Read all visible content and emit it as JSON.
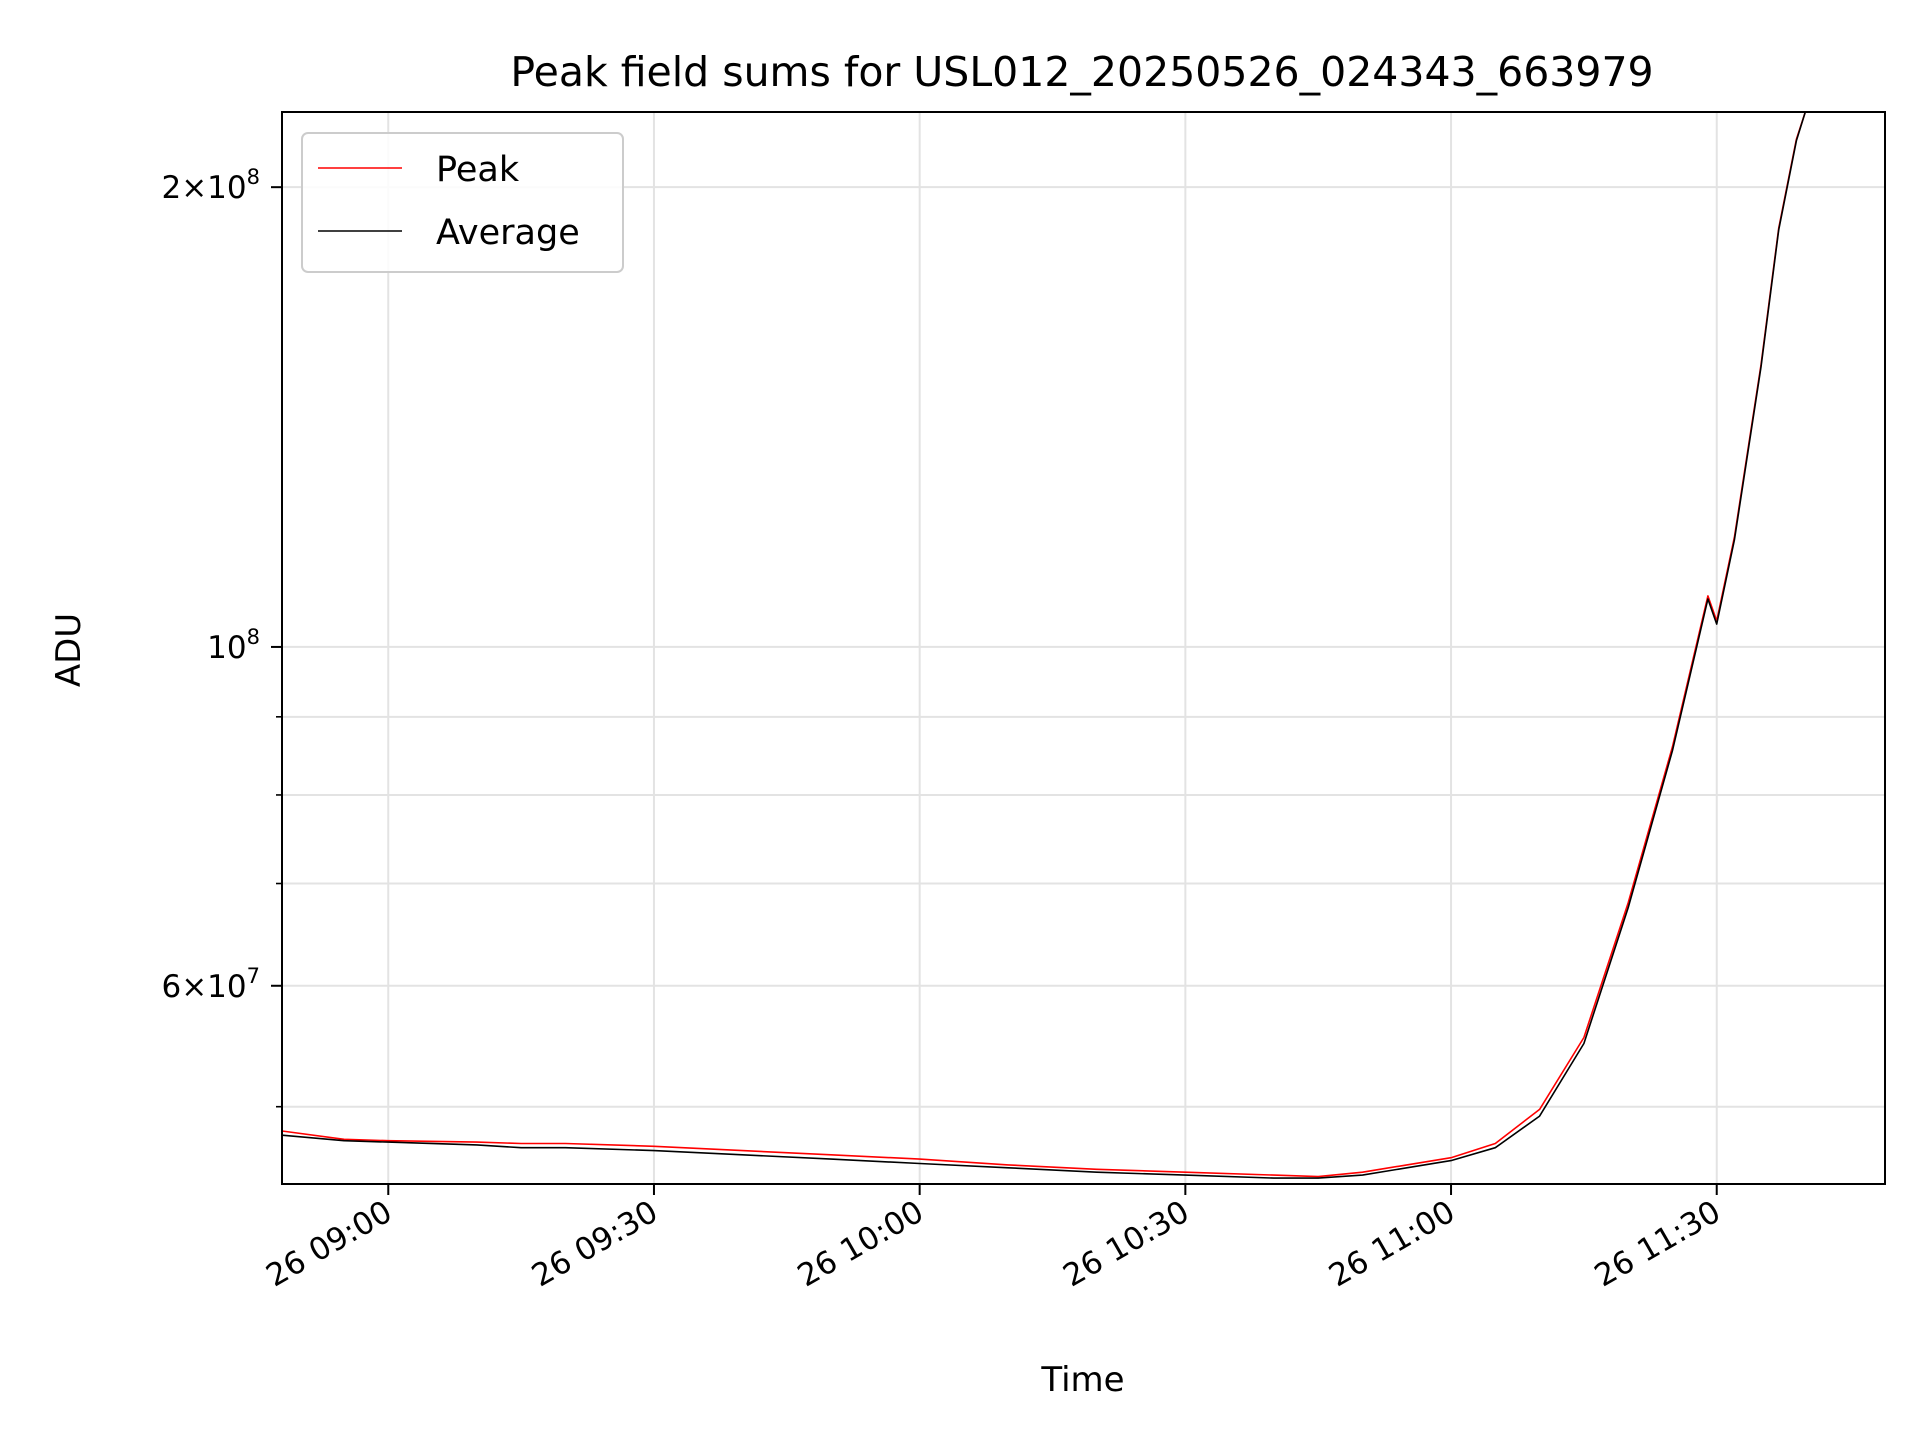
{
  "chart_data": {
    "type": "line",
    "title": "Peak field sums for USL012_20250526_024343_663979",
    "xlabel": "Time",
    "ylabel": "ADU",
    "yscale": "log",
    "grid": true,
    "legend_position": "top-left",
    "xlim": [
      "2025-05-26 08:48",
      "2025-05-26 11:49"
    ],
    "ylim": [
      44500000,
      224000000
    ],
    "x_ticks": [
      {
        "value": "2025-05-26 09:00",
        "label": "26 09:00"
      },
      {
        "value": "2025-05-26 09:30",
        "label": "26 09:30"
      },
      {
        "value": "2025-05-26 10:00",
        "label": "26 10:00"
      },
      {
        "value": "2025-05-26 10:30",
        "label": "26 10:30"
      },
      {
        "value": "2025-05-26 11:00",
        "label": "26 11:00"
      },
      {
        "value": "2025-05-26 11:30",
        "label": "26 11:30"
      }
    ],
    "y_ticks": [
      {
        "value": 200000000,
        "mantissa": "2",
        "exponent": "8"
      },
      {
        "value": 100000000,
        "mantissa": "",
        "exponent": "8"
      },
      {
        "value": 60000000,
        "mantissa": "6",
        "exponent": "7"
      }
    ],
    "y_minor_ticks": [
      50000000,
      70000000,
      80000000,
      90000000
    ],
    "series": [
      {
        "name": "Peak",
        "color": "#ff0000",
        "points": [
          [
            "2025-05-26 08:48",
            48200000
          ],
          [
            "2025-05-26 08:55",
            47600000
          ],
          [
            "2025-05-26 09:00",
            47500000
          ],
          [
            "2025-05-26 09:10",
            47400000
          ],
          [
            "2025-05-26 09:15",
            47300000
          ],
          [
            "2025-05-26 09:20",
            47300000
          ],
          [
            "2025-05-26 09:30",
            47100000
          ],
          [
            "2025-05-26 09:40",
            46800000
          ],
          [
            "2025-05-26 09:50",
            46500000
          ],
          [
            "2025-05-26 10:00",
            46200000
          ],
          [
            "2025-05-26 10:10",
            45800000
          ],
          [
            "2025-05-26 10:20",
            45500000
          ],
          [
            "2025-05-26 10:30",
            45300000
          ],
          [
            "2025-05-26 10:40",
            45100000
          ],
          [
            "2025-05-26 10:45",
            45000000
          ],
          [
            "2025-05-26 10:50",
            45300000
          ],
          [
            "2025-05-26 10:55",
            45800000
          ],
          [
            "2025-05-26 11:00",
            46300000
          ],
          [
            "2025-05-26 11:05",
            47300000
          ],
          [
            "2025-05-26 11:10",
            49800000
          ],
          [
            "2025-05-26 11:15",
            55500000
          ],
          [
            "2025-05-26 11:20",
            68000000
          ],
          [
            "2025-05-26 11:25",
            86000000
          ],
          [
            "2025-05-26 11:29",
            108000000
          ],
          [
            "2025-05-26 11:30",
            104000000
          ],
          [
            "2025-05-26 11:32",
            118000000
          ],
          [
            "2025-05-26 11:35",
            153000000
          ],
          [
            "2025-05-26 11:37",
            188000000
          ],
          [
            "2025-05-26 11:39",
            215000000
          ],
          [
            "2025-05-26 11:40",
            224000000
          ]
        ]
      },
      {
        "name": "Average",
        "color": "#000000",
        "points": [
          [
            "2025-05-26 08:48",
            47900000
          ],
          [
            "2025-05-26 08:55",
            47500000
          ],
          [
            "2025-05-26 09:00",
            47400000
          ],
          [
            "2025-05-26 09:10",
            47200000
          ],
          [
            "2025-05-26 09:15",
            47000000
          ],
          [
            "2025-05-26 09:20",
            47000000
          ],
          [
            "2025-05-26 09:30",
            46800000
          ],
          [
            "2025-05-26 09:40",
            46500000
          ],
          [
            "2025-05-26 09:50",
            46200000
          ],
          [
            "2025-05-26 10:00",
            45900000
          ],
          [
            "2025-05-26 10:10",
            45600000
          ],
          [
            "2025-05-26 10:20",
            45300000
          ],
          [
            "2025-05-26 10:30",
            45100000
          ],
          [
            "2025-05-26 10:40",
            44900000
          ],
          [
            "2025-05-26 10:45",
            44900000
          ],
          [
            "2025-05-26 10:50",
            45100000
          ],
          [
            "2025-05-26 10:55",
            45600000
          ],
          [
            "2025-05-26 11:00",
            46100000
          ],
          [
            "2025-05-26 11:05",
            47000000
          ],
          [
            "2025-05-26 11:10",
            49300000
          ],
          [
            "2025-05-26 11:15",
            55000000
          ],
          [
            "2025-05-26 11:20",
            67500000
          ],
          [
            "2025-05-26 11:25",
            85500000
          ],
          [
            "2025-05-26 11:29",
            107500000
          ],
          [
            "2025-05-26 11:30",
            103500000
          ],
          [
            "2025-05-26 11:32",
            117500000
          ],
          [
            "2025-05-26 11:35",
            152500000
          ],
          [
            "2025-05-26 11:37",
            187500000
          ],
          [
            "2025-05-26 11:39",
            214500000
          ],
          [
            "2025-05-26 11:40",
            224000000
          ]
        ]
      }
    ]
  }
}
